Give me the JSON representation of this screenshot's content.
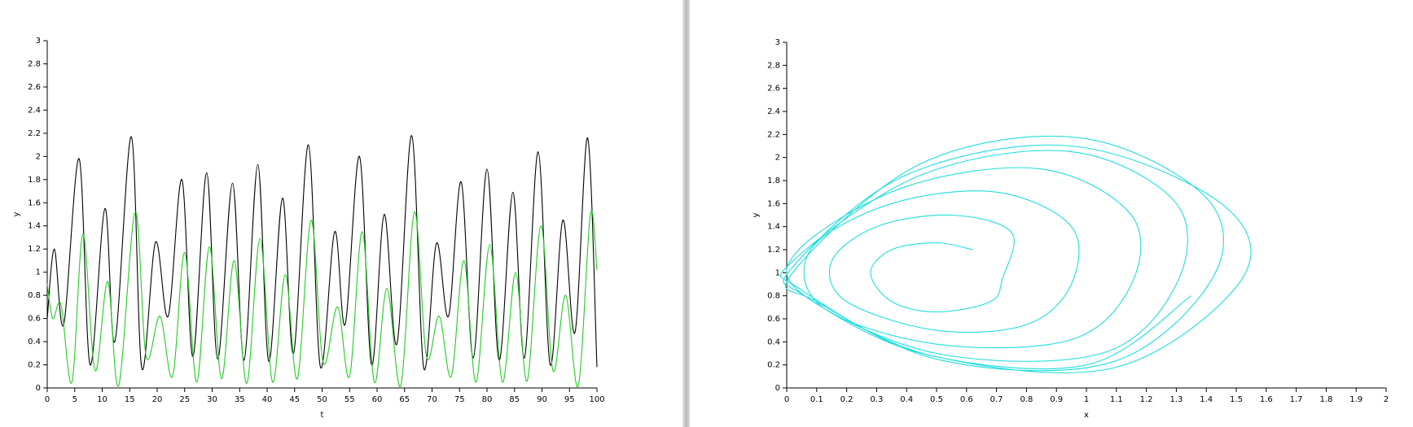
{
  "chart_data": [
    {
      "type": "line",
      "xlabel": "t",
      "ylabel": "y",
      "xlim": [
        0,
        100
      ],
      "ylim": [
        0,
        3
      ],
      "xticks": [
        0,
        5,
        10,
        15,
        20,
        25,
        30,
        35,
        40,
        45,
        50,
        55,
        60,
        65,
        70,
        75,
        80,
        85,
        90,
        95,
        100
      ],
      "yticks": [
        0,
        0.2,
        0.4,
        0.6,
        0.8,
        1,
        1.2,
        1.4,
        1.6,
        1.8,
        2,
        2.2,
        2.4,
        2.6,
        2.8,
        3
      ],
      "series": [
        {
          "color": "#000000",
          "x": [
            0,
            1.3,
            3,
            5.8,
            7.8,
            10.5,
            12.3,
            15.3,
            17.2,
            19.7,
            22,
            24.5,
            26.5,
            29,
            31,
            33.7,
            35.8,
            38.3,
            40.3,
            42.8,
            44.8,
            47.5,
            49.7,
            52.3,
            54.2,
            56.8,
            59,
            61.3,
            63.6,
            66.3,
            68.5,
            70.8,
            73,
            75.3,
            77.5,
            80,
            82.2,
            84.7,
            86.8,
            89.3,
            91.5,
            93.8,
            96,
            98.3,
            100
          ],
          "values": [
            0.6,
            1.2,
            0.55,
            1.98,
            0.2,
            1.55,
            0.4,
            2.17,
            0.17,
            1.26,
            0.62,
            1.8,
            0.27,
            1.86,
            0.25,
            1.77,
            0.24,
            1.93,
            0.23,
            1.64,
            0.3,
            2.1,
            0.18,
            1.35,
            0.55,
            2.0,
            0.2,
            1.5,
            0.38,
            2.18,
            0.17,
            1.25,
            0.62,
            1.78,
            0.26,
            1.89,
            0.24,
            1.69,
            0.26,
            2.04,
            0.2,
            1.45,
            0.48,
            2.16,
            0.18
          ]
        },
        {
          "color": "#22cc22",
          "x": [
            0,
            1,
            2.5,
            4.5,
            6.5,
            8.7,
            11,
            13,
            16,
            18,
            20.5,
            22.8,
            25,
            27.2,
            29.5,
            31.7,
            34,
            36.3,
            38.7,
            41,
            43.3,
            45.5,
            48,
            50.2,
            52.8,
            55,
            57.3,
            59.5,
            61.8,
            64.3,
            66.8,
            69,
            71.3,
            73.5,
            75.8,
            78,
            80.5,
            82.8,
            85.2,
            87.3,
            89.8,
            92,
            94.3,
            96.6,
            98.8,
            100
          ],
          "values": [
            0.9,
            0.6,
            0.72,
            0.05,
            1.33,
            0.15,
            0.92,
            0.02,
            1.52,
            0.27,
            0.62,
            0.1,
            1.17,
            0.05,
            1.22,
            0.08,
            1.1,
            0.04,
            1.29,
            0.05,
            0.98,
            0.08,
            1.45,
            0.22,
            0.7,
            0.1,
            1.35,
            0.05,
            0.86,
            0.02,
            1.52,
            0.27,
            0.62,
            0.1,
            1.1,
            0.05,
            1.24,
            0.05,
            1.0,
            0.06,
            1.4,
            0.15,
            0.8,
            0.02,
            1.5,
            1.02
          ]
        }
      ]
    },
    {
      "type": "line",
      "xlabel": "x",
      "ylabel": "y",
      "xlim": [
        0,
        2
      ],
      "ylim": [
        0,
        3
      ],
      "xticks": [
        0,
        0.1,
        0.2,
        0.3,
        0.4,
        0.5,
        0.6,
        0.7,
        0.8,
        0.9,
        1,
        1.1,
        1.2,
        1.3,
        1.4,
        1.5,
        1.6,
        1.7,
        1.8,
        1.9,
        2
      ],
      "yticks": [
        0,
        0.2,
        0.4,
        0.6,
        0.8,
        1,
        1.2,
        1.4,
        1.6,
        1.8,
        2,
        2.2,
        2.4,
        2.6,
        2.8,
        3
      ],
      "series": [
        {
          "color": "#22dddd",
          "x": [
            0.62,
            0.5,
            0.35,
            0.28,
            0.35,
            0.5,
            0.68,
            0.72,
            0.75,
            0.55,
            0.3,
            0.15,
            0.2,
            0.5,
            0.8,
            0.95,
            0.95,
            0.7,
            0.35,
            0.08,
            0.12,
            0.5,
            0.95,
            1.15,
            1.15,
            0.85,
            0.4,
            0.04,
            0.06,
            0.5,
            1.05,
            1.3,
            1.3,
            0.95,
            0.45,
            0.02,
            0.05,
            0.5,
            1.08,
            1.42,
            1.4,
            0.98,
            0.45,
            0.02,
            0.1,
            0.5,
            1.1,
            1.52,
            1.45,
            0.95,
            0.4,
            0.02,
            0.06,
            0.45,
            1.0,
            1.35
          ],
          "values": [
            1.2,
            1.26,
            1.2,
            1.0,
            0.75,
            0.66,
            0.75,
            0.95,
            1.35,
            1.5,
            1.4,
            1.1,
            0.75,
            0.5,
            0.55,
            0.9,
            1.4,
            1.7,
            1.6,
            1.2,
            0.7,
            0.38,
            0.42,
            0.9,
            1.5,
            1.9,
            1.75,
            1.2,
            0.8,
            0.3,
            0.3,
            0.9,
            1.6,
            2.05,
            1.85,
            1.1,
            0.85,
            0.25,
            0.22,
            0.95,
            1.65,
            2.17,
            1.95,
            1.0,
            0.75,
            0.27,
            0.18,
            0.95,
            1.6,
            2.1,
            1.85,
            1.05,
            0.8,
            0.3,
            0.2,
            0.8
          ]
        }
      ]
    }
  ]
}
